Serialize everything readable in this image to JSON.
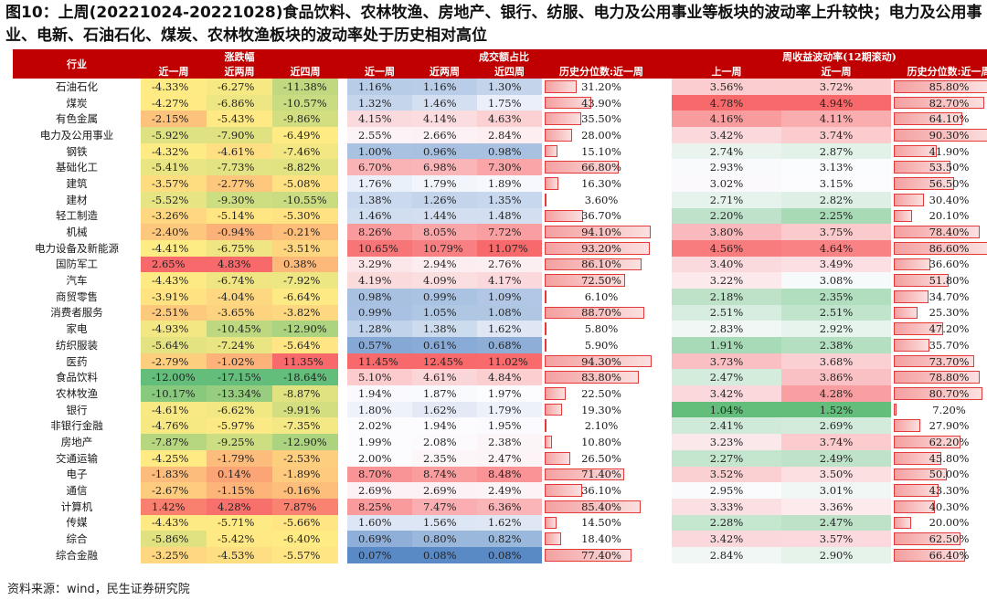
{
  "title": "图10：上周(20221024-20221028)食品饮料、农林牧渔、房地产、银行、纺服、电力及公用事业等板块的波动率上升较快；电力及公用事业、电新、石油石化、煤炭、农林牧渔板块的波动率处于历史相对高位",
  "source": "资料来源：wind，民生证券研究院",
  "header": {
    "industry": "行业",
    "change_group": "涨跌幅",
    "turnover_group": "成交额占比",
    "vol_group": "周收益波动率(12期滚动)",
    "change_cols": [
      "近一周",
      "近两周",
      "近四周"
    ],
    "turnover_cols": [
      "近一周",
      "近两周",
      "近四周",
      "历史分位数:近一周"
    ],
    "vol_cols": [
      "上一周",
      "近一周",
      "历史分位数:近一周"
    ]
  },
  "rows": [
    {
      "name": "石油石化",
      "c1": "-4.33%",
      "c2": "-6.27%",
      "c4": "-11.38%",
      "t1": "1.16%",
      "t2": "1.16%",
      "t4": "1.30%",
      "tp": "31.20%",
      "tpv": 31.2,
      "v0": "3.56%",
      "v1": "3.72%",
      "vp": "85.80%",
      "vpv": 85.8
    },
    {
      "name": "煤炭",
      "c1": "-4.27%",
      "c2": "-6.86%",
      "c4": "-10.57%",
      "t1": "1.32%",
      "t2": "1.46%",
      "t4": "1.75%",
      "tp": "43.90%",
      "tpv": 43.9,
      "v0": "4.78%",
      "v1": "4.94%",
      "vp": "82.70%",
      "vpv": 82.7
    },
    {
      "name": "有色金属",
      "c1": "-2.15%",
      "c2": "-5.43%",
      "c4": "-9.86%",
      "t1": "4.15%",
      "t2": "4.14%",
      "t4": "4.63%",
      "tp": "35.50%",
      "tpv": 35.5,
      "v0": "4.16%",
      "v1": "4.11%",
      "vp": "64.10%",
      "vpv": 64.1
    },
    {
      "name": "电力及公用事业",
      "c1": "-5.92%",
      "c2": "-7.90%",
      "c4": "-6.49%",
      "t1": "2.55%",
      "t2": "2.66%",
      "t4": "2.84%",
      "tp": "28.00%",
      "tpv": 28.0,
      "v0": "3.42%",
      "v1": "3.74%",
      "vp": "90.30%",
      "vpv": 90.3
    },
    {
      "name": "钢铁",
      "c1": "-4.32%",
      "c2": "-4.61%",
      "c4": "-7.46%",
      "t1": "1.00%",
      "t2": "0.96%",
      "t4": "0.98%",
      "tp": "15.10%",
      "tpv": 15.1,
      "v0": "2.74%",
      "v1": "2.87%",
      "vp": "41.90%",
      "vpv": 41.9
    },
    {
      "name": "基础化工",
      "c1": "-5.41%",
      "c2": "-7.73%",
      "c4": "-8.82%",
      "t1": "6.70%",
      "t2": "6.98%",
      "t4": "7.30%",
      "tp": "66.80%",
      "tpv": 66.8,
      "v0": "2.93%",
      "v1": "3.13%",
      "vp": "53.50%",
      "vpv": 53.5
    },
    {
      "name": "建筑",
      "c1": "-3.57%",
      "c2": "-2.77%",
      "c4": "-5.08%",
      "t1": "1.76%",
      "t2": "1.79%",
      "t4": "1.89%",
      "tp": "16.30%",
      "tpv": 16.3,
      "v0": "3.02%",
      "v1": "3.15%",
      "vp": "56.50%",
      "vpv": 56.5
    },
    {
      "name": "建材",
      "c1": "-5.52%",
      "c2": "-9.30%",
      "c4": "-10.55%",
      "t1": "1.38%",
      "t2": "1.26%",
      "t4": "1.35%",
      "tp": "3.60%",
      "tpv": 3.6,
      "v0": "2.71%",
      "v1": "2.82%",
      "vp": "30.40%",
      "vpv": 30.4
    },
    {
      "name": "轻工制造",
      "c1": "-3.26%",
      "c2": "-5.14%",
      "c4": "-5.30%",
      "t1": "1.46%",
      "t2": "1.44%",
      "t4": "1.48%",
      "tp": "36.70%",
      "tpv": 36.7,
      "v0": "2.20%",
      "v1": "2.25%",
      "vp": "20.10%",
      "vpv": 20.1
    },
    {
      "name": "机械",
      "c1": "-2.40%",
      "c2": "-0.94%",
      "c4": "-0.21%",
      "t1": "8.26%",
      "t2": "8.05%",
      "t4": "7.72%",
      "tp": "94.10%",
      "tpv": 94.1,
      "v0": "3.80%",
      "v1": "3.75%",
      "vp": "78.40%",
      "vpv": 78.4
    },
    {
      "name": "电力设备及新能源",
      "c1": "-4.41%",
      "c2": "-6.75%",
      "c4": "-3.51%",
      "t1": "10.65%",
      "t2": "10.79%",
      "t4": "11.07%",
      "tp": "93.20%",
      "tpv": 93.2,
      "v0": "4.56%",
      "v1": "4.64%",
      "vp": "86.60%",
      "vpv": 86.6
    },
    {
      "name": "国防军工",
      "c1": "2.65%",
      "c2": "4.83%",
      "c4": "0.38%",
      "t1": "3.29%",
      "t2": "2.94%",
      "t4": "2.76%",
      "tp": "86.10%",
      "tpv": 86.1,
      "v0": "3.40%",
      "v1": "3.49%",
      "vp": "36.60%",
      "vpv": 36.6
    },
    {
      "name": "汽车",
      "c1": "-4.43%",
      "c2": "-6.74%",
      "c4": "-7.92%",
      "t1": "4.19%",
      "t2": "4.09%",
      "t4": "4.17%",
      "tp": "72.50%",
      "tpv": 72.5,
      "v0": "3.22%",
      "v1": "3.08%",
      "vp": "51.80%",
      "vpv": 51.8
    },
    {
      "name": "商贸零售",
      "c1": "-3.91%",
      "c2": "-4.04%",
      "c4": "-6.64%",
      "t1": "0.98%",
      "t2": "0.99%",
      "t4": "1.09%",
      "tp": "6.10%",
      "tpv": 6.1,
      "v0": "2.18%",
      "v1": "2.35%",
      "vp": "34.70%",
      "vpv": 34.7
    },
    {
      "name": "消费者服务",
      "c1": "-2.51%",
      "c2": "-3.65%",
      "c4": "-3.82%",
      "t1": "0.99%",
      "t2": "1.05%",
      "t4": "1.08%",
      "tp": "88.70%",
      "tpv": 88.7,
      "v0": "2.51%",
      "v1": "2.51%",
      "vp": "25.30%",
      "vpv": 25.3
    },
    {
      "name": "家电",
      "c1": "-4.93%",
      "c2": "-10.45%",
      "c4": "-12.90%",
      "t1": "1.28%",
      "t2": "1.38%",
      "t4": "1.62%",
      "tp": "5.80%",
      "tpv": 5.8,
      "v0": "2.83%",
      "v1": "2.92%",
      "vp": "47.20%",
      "vpv": 47.2
    },
    {
      "name": "纺织服装",
      "c1": "-5.64%",
      "c2": "-7.24%",
      "c4": "-5.64%",
      "t1": "0.57%",
      "t2": "0.61%",
      "t4": "0.68%",
      "tp": "5.90%",
      "tpv": 5.9,
      "v0": "1.91%",
      "v1": "2.38%",
      "vp": "35.70%",
      "vpv": 35.7
    },
    {
      "name": "医药",
      "c1": "-2.79%",
      "c2": "-1.02%",
      "c4": "11.35%",
      "t1": "11.45%",
      "t2": "12.45%",
      "t4": "11.02%",
      "tp": "94.30%",
      "tpv": 94.3,
      "v0": "3.73%",
      "v1": "3.68%",
      "vp": "73.70%",
      "vpv": 73.7
    },
    {
      "name": "食品饮料",
      "c1": "-12.00%",
      "c2": "-17.15%",
      "c4": "-18.64%",
      "t1": "5.10%",
      "t2": "4.61%",
      "t4": "4.84%",
      "tp": "83.80%",
      "tpv": 83.8,
      "v0": "2.47%",
      "v1": "3.86%",
      "vp": "78.80%",
      "vpv": 78.8
    },
    {
      "name": "农林牧渔",
      "c1": "-10.17%",
      "c2": "-13.34%",
      "c4": "-8.87%",
      "t1": "1.94%",
      "t2": "1.87%",
      "t4": "1.97%",
      "tp": "22.50%",
      "tpv": 22.5,
      "v0": "3.42%",
      "v1": "4.28%",
      "vp": "80.70%",
      "vpv": 80.7
    },
    {
      "name": "银行",
      "c1": "-4.61%",
      "c2": "-6.62%",
      "c4": "-9.91%",
      "t1": "1.80%",
      "t2": "1.62%",
      "t4": "1.79%",
      "tp": "19.30%",
      "tpv": 19.3,
      "v0": "1.04%",
      "v1": "1.52%",
      "vp": "7.20%",
      "vpv": 7.2
    },
    {
      "name": "非银行金融",
      "c1": "-4.76%",
      "c2": "-5.97%",
      "c4": "-7.35%",
      "t1": "2.02%",
      "t2": "1.94%",
      "t4": "1.95%",
      "tp": "2.10%",
      "tpv": 2.1,
      "v0": "2.41%",
      "v1": "2.69%",
      "vp": "27.90%",
      "vpv": 27.9
    },
    {
      "name": "房地产",
      "c1": "-7.87%",
      "c2": "-9.25%",
      "c4": "-12.90%",
      "t1": "1.99%",
      "t2": "2.08%",
      "t4": "2.38%",
      "tp": "10.80%",
      "tpv": 10.8,
      "v0": "3.23%",
      "v1": "3.74%",
      "vp": "62.20%",
      "vpv": 62.2
    },
    {
      "name": "交通运输",
      "c1": "-4.25%",
      "c2": "-1.79%",
      "c4": "-2.53%",
      "t1": "2.00%",
      "t2": "2.35%",
      "t4": "2.47%",
      "tp": "26.50%",
      "tpv": 26.5,
      "v0": "2.27%",
      "v1": "2.49%",
      "vp": "45.80%",
      "vpv": 45.8
    },
    {
      "name": "电子",
      "c1": "-1.83%",
      "c2": "0.14%",
      "c4": "-1.89%",
      "t1": "8.70%",
      "t2": "8.74%",
      "t4": "8.48%",
      "tp": "71.40%",
      "tpv": 71.4,
      "v0": "3.52%",
      "v1": "3.50%",
      "vp": "50.00%",
      "vpv": 50.0
    },
    {
      "name": "通信",
      "c1": "-2.67%",
      "c2": "-1.15%",
      "c4": "-0.16%",
      "t1": "2.69%",
      "t2": "2.69%",
      "t4": "2.49%",
      "tp": "36.10%",
      "tpv": 36.1,
      "v0": "2.95%",
      "v1": "3.01%",
      "vp": "43.30%",
      "vpv": 43.3
    },
    {
      "name": "计算机",
      "c1": "1.42%",
      "c2": "4.28%",
      "c4": "7.87%",
      "t1": "8.25%",
      "t2": "7.47%",
      "t4": "6.36%",
      "tp": "85.40%",
      "tpv": 85.4,
      "v0": "3.33%",
      "v1": "3.36%",
      "vp": "40.30%",
      "vpv": 40.3
    },
    {
      "name": "传媒",
      "c1": "-4.43%",
      "c2": "-5.71%",
      "c4": "-5.66%",
      "t1": "1.60%",
      "t2": "1.56%",
      "t4": "1.62%",
      "tp": "14.50%",
      "tpv": 14.5,
      "v0": "2.28%",
      "v1": "2.47%",
      "vp": "20.00%",
      "vpv": 20.0
    },
    {
      "name": "综合",
      "c1": "-5.86%",
      "c2": "-5.42%",
      "c4": "-6.40%",
      "t1": "0.69%",
      "t2": "0.80%",
      "t4": "0.82%",
      "tp": "18.40%",
      "tpv": 18.4,
      "v0": "3.42%",
      "v1": "3.57%",
      "vp": "62.50%",
      "vpv": 62.5
    },
    {
      "name": "综合金融",
      "c1": "-3.25%",
      "c2": "-4.53%",
      "c4": "-5.57%",
      "t1": "0.07%",
      "t2": "0.08%",
      "t4": "0.08%",
      "tp": "77.40%",
      "tpv": 77.4,
      "v0": "2.84%",
      "v1": "2.90%",
      "vp": "66.40%",
      "vpv": 66.4
    }
  ]
}
